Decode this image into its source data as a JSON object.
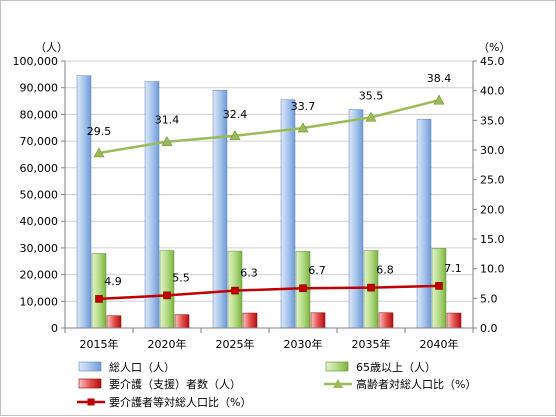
{
  "chart_data": {
    "type": "bar",
    "categories": [
      "2015年",
      "2020年",
      "2025年",
      "2030年",
      "2035年",
      "2040年"
    ],
    "left_unit": "（人）",
    "right_unit": "（%）",
    "ylim": [
      0,
      100000
    ],
    "y2lim": [
      0,
      45
    ],
    "left_ticks": [
      "0",
      "10,000",
      "20,000",
      "30,000",
      "40,000",
      "50,000",
      "60,000",
      "70,000",
      "80,000",
      "90,000",
      "100,000"
    ],
    "right_ticks": [
      "0.0",
      "5.0",
      "10.0",
      "15.0",
      "20.0",
      "25.0",
      "30.0",
      "35.0",
      "40.0",
      "45.0"
    ],
    "grid": true,
    "legend_position": "bottom",
    "series": [
      {
        "name": "総人口（人）",
        "type": "bar",
        "axis": "left",
        "color": "#8db3e2",
        "values": [
          94500,
          92300,
          89000,
          85500,
          81800,
          78200
        ]
      },
      {
        "name": "65歳以上（人）",
        "type": "bar",
        "axis": "left",
        "color": "#92d050",
        "values": [
          27900,
          29000,
          28800,
          28700,
          29000,
          29800
        ]
      },
      {
        "name": "要介護（支援）者数（人）",
        "type": "bar",
        "axis": "left",
        "color": "#e02020",
        "values": [
          4600,
          5000,
          5600,
          5700,
          5700,
          5600
        ]
      },
      {
        "name": "高齢者対総人口比（%）",
        "type": "line",
        "axis": "right",
        "color": "#9bbb59",
        "values": [
          29.5,
          31.4,
          32.4,
          33.7,
          35.5,
          38.4
        ],
        "labels": [
          "29.5",
          "31.4",
          "32.4",
          "33.7",
          "35.5",
          "38.4"
        ]
      },
      {
        "name": "要介護者等対総人口比（%）",
        "type": "line",
        "axis": "right",
        "color": "#c00000",
        "values": [
          4.9,
          5.5,
          6.3,
          6.7,
          6.8,
          7.1
        ],
        "labels": [
          "4.9",
          "5.5",
          "6.3",
          "6.7",
          "6.8",
          "7.1"
        ]
      }
    ]
  }
}
